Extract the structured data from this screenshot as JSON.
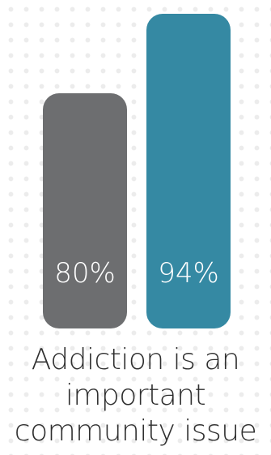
{
  "chart_data": {
    "type": "bar",
    "categories": [
      "",
      ""
    ],
    "values": [
      80,
      94
    ],
    "data_labels": [
      "80%",
      "94%"
    ],
    "colors": [
      "#6d6e70",
      "#3589a3"
    ],
    "label_color": "#ffffff",
    "ylim": [
      0,
      100
    ],
    "grid": false,
    "legend": "none",
    "caption_lines": [
      "Addiction is an",
      "important",
      "community issue"
    ]
  }
}
